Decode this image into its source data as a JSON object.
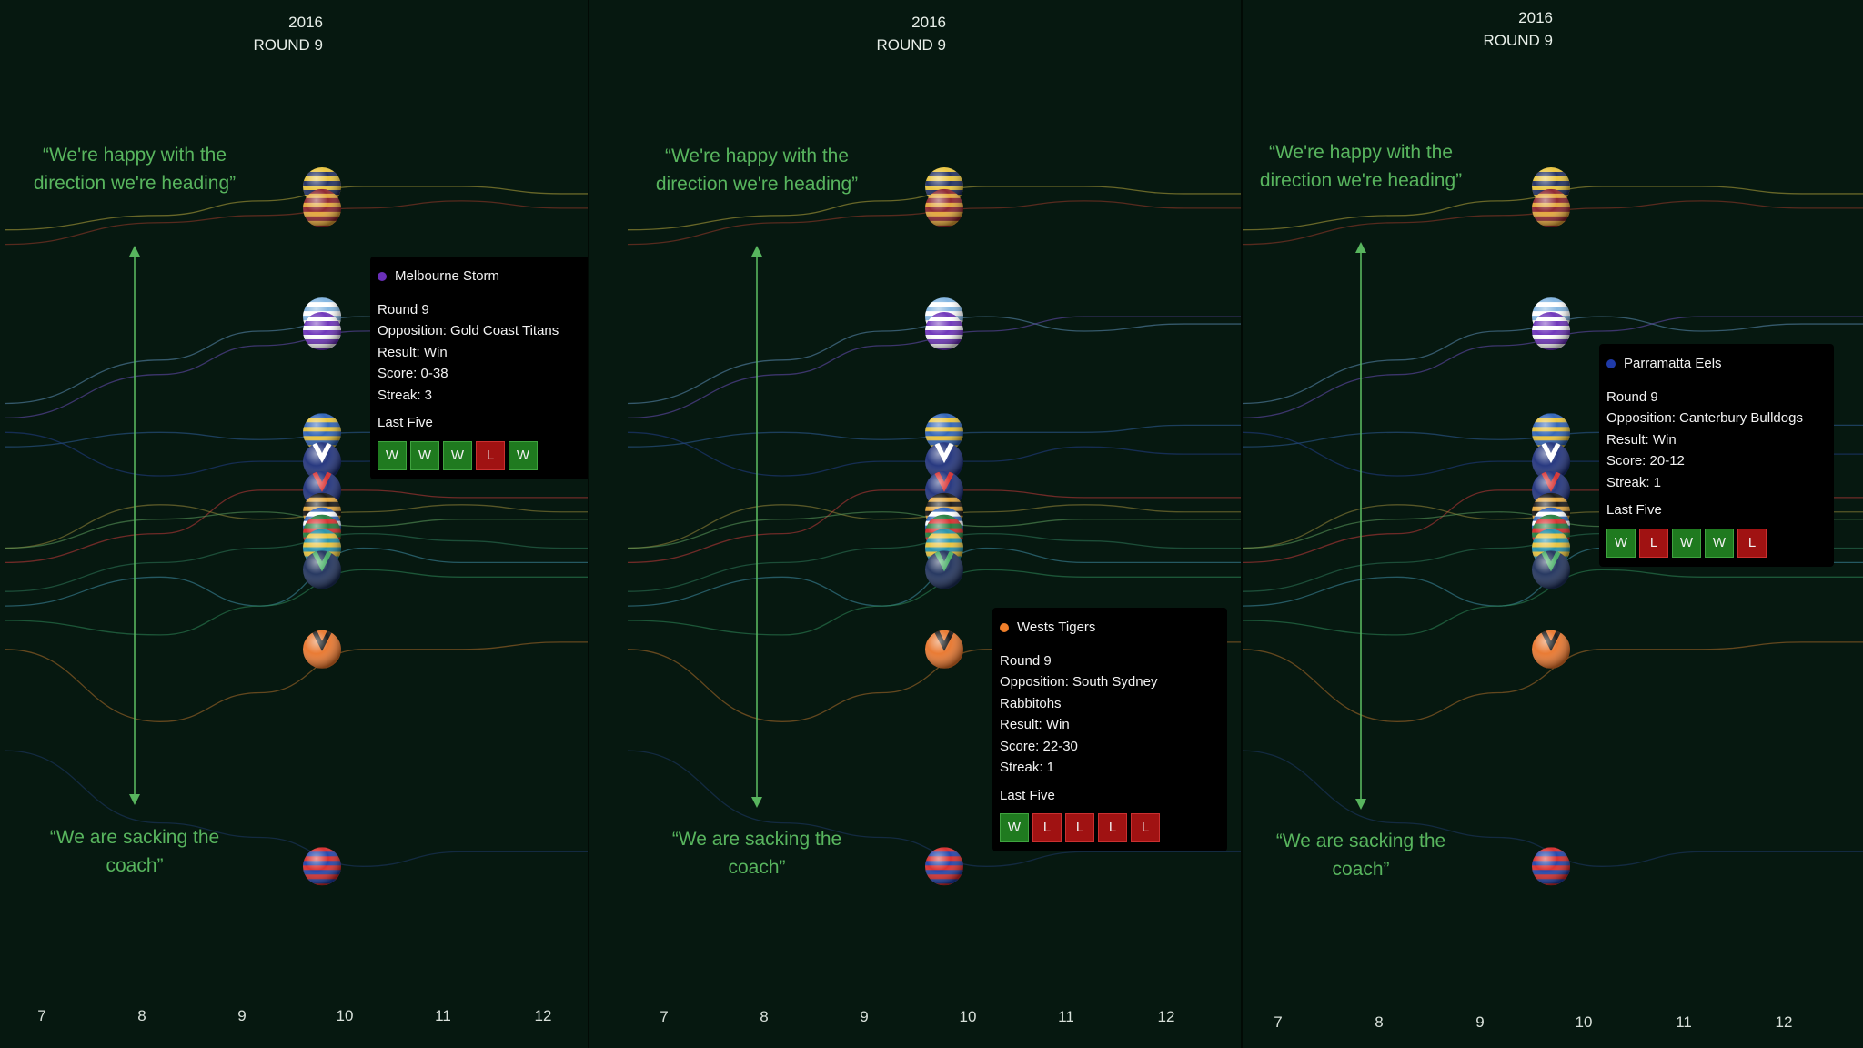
{
  "chart_data": {
    "type": "line",
    "x": [
      7,
      8,
      9,
      10,
      11,
      12
    ],
    "xticks": [
      "7",
      "8",
      "9",
      "10",
      "11",
      "12"
    ],
    "season": "2016",
    "round_label": "ROUND 9",
    "axis_top_label": "“We're happy with the direction we're heading”",
    "axis_bottom_label": "“We are sacking the coach”",
    "grid": false,
    "panels": [
      {
        "tooltip": {
          "team": "Melbourne Storm",
          "color": "#6a2fb8",
          "round": "Round 9",
          "opposition": "Opposition: Gold Coast Titans",
          "result": "Result: Win",
          "score": "Score: 0-38",
          "streak": "Streak: 3",
          "last_five_label": "Last Five",
          "last_five": [
            "W",
            "W",
            "W",
            "L",
            "W"
          ]
        }
      },
      {
        "tooltip": {
          "team": "Wests Tigers",
          "color": "#f07f2a",
          "round": "Round 9",
          "opposition": "Opposition: South Sydney Rabbitohs",
          "result": "Result: Win",
          "score": "Score: 22-30",
          "streak": "Streak: 1",
          "last_five_label": "Last Five",
          "last_five": [
            "W",
            "L",
            "L",
            "L",
            "L"
          ]
        }
      },
      {
        "tooltip": {
          "team": "Parramatta Eels",
          "color": "#1f3aa8",
          "round": "Round 9",
          "opposition": "Opposition: Canterbury Bulldogs",
          "result": "Result: Win",
          "score": "Score: 20-12",
          "streak": "Streak: 1",
          "last_five_label": "Last Five",
          "last_five": [
            "W",
            "L",
            "W",
            "W",
            "L"
          ]
        }
      }
    ],
    "teams": [
      {
        "name": "team-yellow-navy",
        "colors": [
          "#e8c23a",
          "#1b2a5e"
        ],
        "color": "#b8a73c",
        "values": [
          0.94,
          0.96,
          0.98,
          1.0,
          1.0,
          0.99
        ]
      },
      {
        "name": "team-maroon-gold",
        "colors": [
          "#8a1f2a",
          "#e3a437"
        ],
        "color": "#9a3b2a",
        "values": [
          0.92,
          0.95,
          0.96,
          0.97,
          0.98,
          0.97
        ]
      },
      {
        "name": "team-sky-white",
        "colors": [
          "#7fb3e0",
          "#ffffff"
        ],
        "color": "#5d8fb8",
        "values": [
          0.7,
          0.76,
          0.8,
          0.82,
          0.8,
          0.81
        ]
      },
      {
        "name": "team-purple-white",
        "colors": [
          "#6a2fb8",
          "#ffffff"
        ],
        "color": "#6a4fb8",
        "values": [
          0.68,
          0.74,
          0.78,
          0.8,
          0.82,
          0.82
        ]
      },
      {
        "name": "team-blue-gold",
        "colors": [
          "#2a5fb5",
          "#e8c23a"
        ],
        "color": "#2f5f9a",
        "values": [
          0.64,
          0.66,
          0.65,
          0.66,
          0.66,
          0.67
        ]
      },
      {
        "name": "team-navy-white-v",
        "colors": [
          "#1d2f7a",
          "#ffffff"
        ],
        "color": "#23408a",
        "values": [
          0.66,
          0.6,
          0.62,
          0.62,
          0.64,
          0.63
        ]
      },
      {
        "name": "team-navy-red-v",
        "colors": [
          "#1d2f7a",
          "#d62828"
        ],
        "color": "#c43a3a",
        "values": [
          0.48,
          0.52,
          0.58,
          0.58,
          0.57,
          0.57
        ]
      },
      {
        "name": "team-black-gold",
        "colors": [
          "#111111",
          "#e3a437"
        ],
        "color": "#9a8a3a",
        "values": [
          0.5,
          0.56,
          0.54,
          0.55,
          0.56,
          0.55
        ]
      },
      {
        "name": "team-blue-white-green",
        "colors": [
          "#2a5fb5",
          "#ffffff"
        ],
        "color": "#5fa05f",
        "values": [
          0.5,
          0.54,
          0.55,
          0.53,
          0.54,
          0.54
        ]
      },
      {
        "name": "team-green-red",
        "colors": [
          "#1f7a3a",
          "#d62828"
        ],
        "color": "#2f7a5a",
        "values": [
          0.44,
          0.48,
          0.5,
          0.52,
          0.51,
          0.5
        ]
      },
      {
        "name": "team-teal-gold",
        "colors": [
          "#1f8fa8",
          "#e8c23a"
        ],
        "color": "#3f8fa8",
        "values": [
          0.42,
          0.46,
          0.42,
          0.5,
          0.48,
          0.48
        ]
      },
      {
        "name": "team-navy-green-v",
        "colors": [
          "#1d2f5a",
          "#3faa5f"
        ],
        "color": "#2f8a5a",
        "values": [
          0.4,
          0.38,
          0.42,
          0.47,
          0.46,
          0.46
        ]
      },
      {
        "name": "team-orange-black-v",
        "colors": [
          "#e8742a",
          "#111111"
        ],
        "color": "#b0702a",
        "values": [
          0.36,
          0.26,
          0.3,
          0.36,
          0.36,
          0.37
        ]
      },
      {
        "name": "team-red-blue",
        "colors": [
          "#d62828",
          "#1d3fa8"
        ],
        "color": "#1f3a6a",
        "values": [
          0.22,
          0.12,
          0.1,
          0.06,
          0.08,
          0.08
        ]
      }
    ]
  }
}
